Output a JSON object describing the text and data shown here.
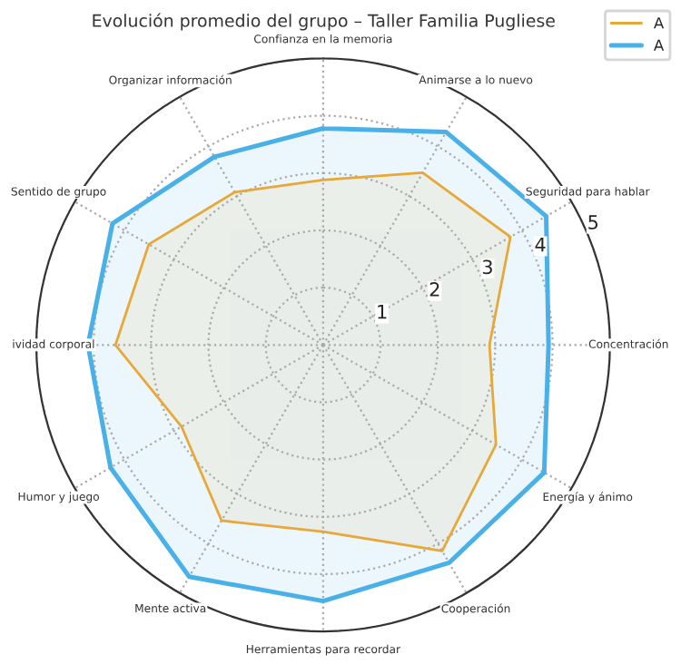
{
  "chart_data": {
    "type": "radar",
    "title": "Evolución promedio del grupo – Taller Familia Pugliese",
    "categories": [
      "Confianza en la memoria",
      "Animarse a lo nuevo",
      "Seguridad para hablar",
      "Concentración",
      "Energía y ánimo",
      "Cooperación",
      "Herramientas para recordar",
      "Mente activa",
      "Humor y juego",
      "ividad corporal",
      "Sentido de grupo",
      "Organizar información"
    ],
    "series": [
      {
        "name": "A",
        "color": "#e8a838",
        "values": [
          2.88,
          3.47,
          3.77,
          2.9,
          3.48,
          4.15,
          3.26,
          3.54,
          2.85,
          3.62,
          3.51,
          3.08
        ]
      },
      {
        "name": "A",
        "color": "#4ab0e8",
        "values": [
          3.78,
          4.29,
          4.49,
          3.93,
          4.45,
          4.39,
          4.47,
          4.67,
          4.28,
          4.1,
          4.24,
          3.79
        ]
      }
    ],
    "ylim": [
      0,
      5
    ],
    "yticks": [
      1,
      2,
      3,
      4,
      5
    ],
    "grid": true,
    "legend": "top right",
    "line_style": "solid",
    "marker": "none"
  }
}
